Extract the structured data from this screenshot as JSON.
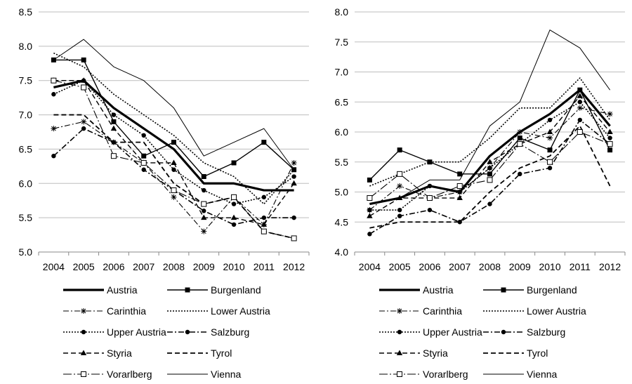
{
  "chart_data": [
    {
      "type": "line",
      "x": [
        "2004",
        "2005",
        "2006",
        "2007",
        "2008",
        "2009",
        "2010",
        "2011",
        "2012"
      ],
      "ylim": [
        5.0,
        8.5
      ],
      "yticks": [
        "5.0",
        "5.5",
        "6.0",
        "6.5",
        "7.0",
        "7.5",
        "8.0",
        "8.5"
      ],
      "grid": "horizontal",
      "legend": "bottom",
      "series": [
        {
          "name": "Austria",
          "style": "austria",
          "values": [
            7.4,
            7.5,
            7.1,
            6.8,
            6.5,
            6.0,
            6.0,
            5.9,
            5.9
          ]
        },
        {
          "name": "Burgenland",
          "style": "burgenland",
          "values": [
            7.8,
            7.8,
            6.9,
            6.4,
            6.6,
            6.1,
            6.3,
            6.6,
            6.2
          ]
        },
        {
          "name": "Carinthia",
          "style": "carinthia",
          "values": [
            6.8,
            6.9,
            6.6,
            6.3,
            5.8,
            5.3,
            5.8,
            5.4,
            6.3
          ]
        },
        {
          "name": "Lower Austria",
          "style": "lower",
          "values": [
            7.9,
            7.7,
            7.3,
            7.0,
            6.7,
            6.3,
            6.1,
            5.7,
            6.2
          ]
        },
        {
          "name": "Upper Austria",
          "style": "upper",
          "values": [
            7.3,
            7.5,
            7.0,
            6.7,
            6.2,
            5.9,
            5.7,
            5.8,
            6.1
          ]
        },
        {
          "name": "Salzburg",
          "style": "salzburg",
          "values": [
            6.4,
            6.8,
            6.6,
            6.2,
            5.9,
            5.6,
            5.4,
            5.5,
            5.5
          ]
        },
        {
          "name": "Styria",
          "style": "styria",
          "values": [
            7.5,
            7.5,
            6.8,
            6.3,
            6.3,
            5.5,
            5.5,
            5.4,
            6.0
          ]
        },
        {
          "name": "Tyrol",
          "style": "tyrol",
          "values": [
            7.0,
            7.0,
            6.6,
            6.6,
            6.0,
            5.7,
            5.8,
            5.3,
            5.2
          ]
        },
        {
          "name": "Vorarlberg",
          "style": "vorarlberg",
          "values": [
            7.5,
            7.4,
            6.4,
            6.3,
            5.9,
            5.7,
            5.8,
            5.3,
            5.2
          ]
        },
        {
          "name": "Vienna",
          "style": "vienna",
          "values": [
            7.8,
            8.1,
            7.7,
            7.5,
            7.1,
            6.4,
            6.6,
            6.8,
            6.2
          ]
        }
      ]
    },
    {
      "type": "line",
      "x": [
        "2004",
        "2005",
        "2006",
        "2007",
        "2008",
        "2009",
        "2010",
        "2011",
        "2012"
      ],
      "ylim": [
        4.0,
        8.0
      ],
      "yticks": [
        "4.0",
        "4.5",
        "5.0",
        "5.5",
        "6.0",
        "6.5",
        "7.0",
        "7.5",
        "8.0"
      ],
      "grid": "horizontal",
      "legend": "bottom",
      "series": [
        {
          "name": "Austria",
          "style": "austria",
          "values": [
            4.8,
            4.9,
            5.1,
            5.0,
            5.6,
            6.0,
            6.3,
            6.7,
            6.1
          ]
        },
        {
          "name": "Burgenland",
          "style": "burgenland",
          "values": [
            5.2,
            5.7,
            5.5,
            5.3,
            5.3,
            5.9,
            5.7,
            6.7,
            5.7
          ]
        },
        {
          "name": "Carinthia",
          "style": "carinthia",
          "values": [
            4.7,
            5.1,
            4.9,
            5.0,
            5.4,
            6.0,
            5.9,
            6.4,
            6.3
          ]
        },
        {
          "name": "Lower Austria",
          "style": "lower",
          "values": [
            5.1,
            5.3,
            5.5,
            5.5,
            5.9,
            6.4,
            6.4,
            6.9,
            6.2
          ]
        },
        {
          "name": "Upper Austria",
          "style": "upper",
          "values": [
            4.7,
            4.7,
            5.1,
            5.0,
            5.4,
            5.8,
            6.2,
            6.5,
            5.9
          ]
        },
        {
          "name": "Salzburg",
          "style": "salzburg",
          "values": [
            4.3,
            4.6,
            4.7,
            4.5,
            4.8,
            5.3,
            5.4,
            6.2,
            5.8
          ]
        },
        {
          "name": "Styria",
          "style": "styria",
          "values": [
            4.6,
            4.9,
            4.9,
            4.9,
            5.5,
            5.8,
            6.0,
            6.6,
            6.0
          ]
        },
        {
          "name": "Tyrol",
          "style": "tyrol",
          "values": [
            4.4,
            4.5,
            4.5,
            4.5,
            5.0,
            5.4,
            5.6,
            6.1,
            5.1
          ]
        },
        {
          "name": "Vorarlberg",
          "style": "vorarlberg",
          "values": [
            4.9,
            5.3,
            4.9,
            5.1,
            5.2,
            5.8,
            5.5,
            6.0,
            5.8
          ]
        },
        {
          "name": "Vienna",
          "style": "vienna",
          "values": [
            4.8,
            4.9,
            5.2,
            5.2,
            6.1,
            6.5,
            7.7,
            7.4,
            6.7
          ]
        }
      ]
    }
  ]
}
